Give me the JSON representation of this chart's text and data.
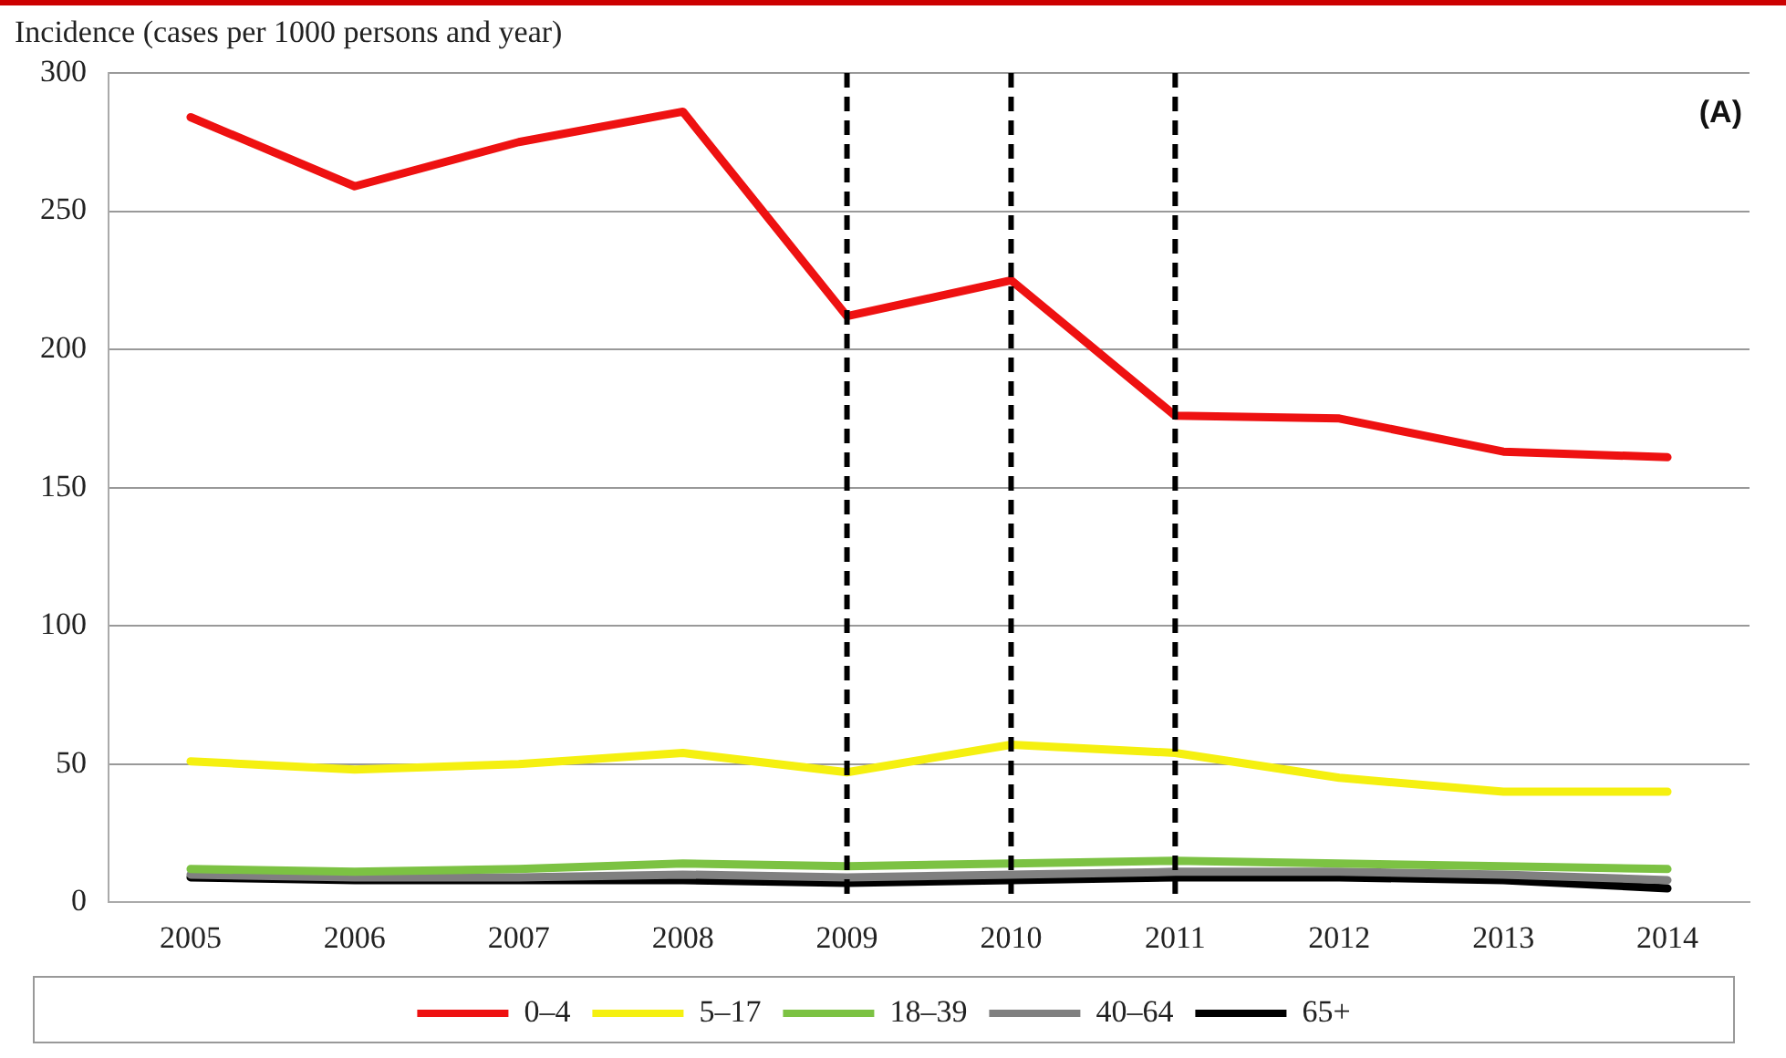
{
  "chart_data": {
    "type": "line",
    "ylabel": "Incidence (cases per 1000 persons and year)",
    "categories": [
      "2005",
      "2006",
      "2007",
      "2008",
      "2009",
      "2010",
      "2011",
      "2012",
      "2013",
      "2014"
    ],
    "series": [
      {
        "name": "0–4",
        "color": "#ee1111",
        "values": [
          284,
          259,
          275,
          286,
          212,
          225,
          176,
          175,
          163,
          161
        ]
      },
      {
        "name": "5–17",
        "color": "#f5f010",
        "values": [
          51,
          48,
          50,
          54,
          47,
          57,
          54,
          45,
          40,
          40
        ]
      },
      {
        "name": "18–39",
        "color": "#7cc243",
        "values": [
          12,
          11,
          12,
          14,
          13,
          14,
          15,
          14,
          13,
          12
        ]
      },
      {
        "name": "40–64",
        "color": "#808080",
        "values": [
          10,
          9,
          9,
          10,
          9,
          10,
          11,
          11,
          10,
          8
        ]
      },
      {
        "name": "65+",
        "color": "#000000",
        "values": [
          9,
          8,
          8,
          8,
          7,
          8,
          9,
          9,
          8,
          5
        ]
      }
    ],
    "ylim": [
      0,
      300
    ],
    "yticks": [
      0,
      50,
      100,
      150,
      200,
      250,
      300
    ],
    "grid": "y",
    "legend": "bottom",
    "marker": "none",
    "line_style": "solid",
    "ref_lines": [
      {
        "axis": "x",
        "value": "2009",
        "color": "#000000",
        "line_style": "dashed"
      },
      {
        "axis": "x",
        "value": "2010",
        "color": "#000000",
        "line_style": "dashed"
      },
      {
        "axis": "x",
        "value": "2011",
        "color": "#000000",
        "line_style": "dashed"
      }
    ],
    "annotations": [
      "(A)"
    ]
  }
}
